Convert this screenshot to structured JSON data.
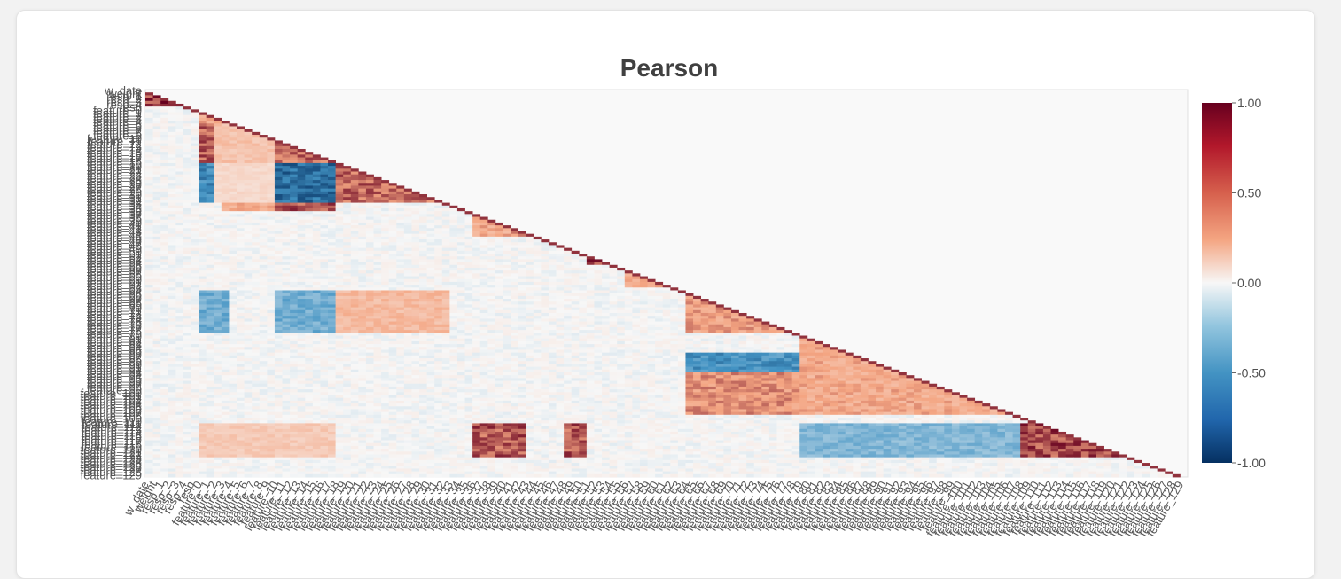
{
  "chart_data": {
    "type": "heatmap",
    "title": "Pearson",
    "xlabel": "",
    "ylabel": "",
    "triangle": "lower",
    "colorscale": "RdBu (diverging, blue = negative, red = positive)",
    "colors": {
      "neg_max": "#053061",
      "neg_mid": "#4393c3",
      "zero": "#f7f7f7",
      "pos_mid": "#f4a582",
      "pos_max": "#67001f",
      "masked": "#f9f9f9"
    },
    "zrange": [
      -1.0,
      1.0
    ],
    "colorbar_ticks": [
      "1.00",
      "0.50",
      "0.00",
      "-0.50",
      "-1.00"
    ],
    "variables": [
      "w_date",
      "weight",
      "resp_1",
      "resp_2",
      "resp_3",
      "resp_4",
      "resp",
      "feature_0",
      "feature_1",
      "feature_2",
      "feature_3",
      "feature_4",
      "feature_5",
      "feature_6",
      "feature_7",
      "feature_8",
      "feature_9",
      "feature_10",
      "feature_11",
      "feature_12",
      "feature_13",
      "feature_14",
      "feature_15",
      "feature_16",
      "feature_17",
      "feature_18",
      "feature_19",
      "feature_20",
      "feature_21",
      "feature_22",
      "feature_23",
      "feature_24",
      "feature_25",
      "feature_26",
      "feature_27",
      "feature_28",
      "feature_29",
      "feature_30",
      "feature_31",
      "feature_32",
      "feature_33",
      "feature_34",
      "feature_35",
      "feature_36",
      "feature_37",
      "feature_38",
      "feature_39",
      "feature_40",
      "feature_41",
      "feature_42",
      "feature_43",
      "feature_44",
      "feature_45",
      "feature_46",
      "feature_47",
      "feature_48",
      "feature_49",
      "feature_50",
      "feature_51",
      "feature_52",
      "feature_53",
      "feature_54",
      "feature_55",
      "feature_56",
      "feature_57",
      "feature_58",
      "feature_59",
      "feature_60",
      "feature_61",
      "feature_62",
      "feature_63",
      "feature_64",
      "feature_65",
      "feature_66",
      "feature_67",
      "feature_68",
      "feature_69",
      "feature_70",
      "feature_71",
      "feature_72",
      "feature_73",
      "feature_74",
      "feature_75",
      "feature_76",
      "feature_77",
      "feature_78",
      "feature_79",
      "feature_80",
      "feature_81",
      "feature_82",
      "feature_83",
      "feature_84",
      "feature_85",
      "feature_86",
      "feature_87",
      "feature_88",
      "feature_89",
      "feature_90",
      "feature_91",
      "feature_92",
      "feature_93",
      "feature_94",
      "feature_95",
      "feature_96",
      "feature_97",
      "feature_98",
      "feature_99",
      "feature_100",
      "feature_101",
      "feature_102",
      "feature_103",
      "feature_104",
      "feature_105",
      "feature_106",
      "feature_107",
      "feature_108",
      "feature_109",
      "feature_110",
      "feature_111",
      "feature_112",
      "feature_113",
      "feature_114",
      "feature_115",
      "feature_116",
      "feature_117",
      "feature_118",
      "feature_119",
      "feature_120",
      "feature_121",
      "feature_122",
      "feature_123",
      "feature_124",
      "feature_125",
      "feature_126",
      "feature_127",
      "feature_128",
      "feature_129"
    ],
    "blocks": [
      {
        "rows": [
          1,
          6
        ],
        "cols": [
          0,
          6
        ],
        "r": 0.9
      },
      {
        "rows": [
          8,
          12
        ],
        "cols": [
          7,
          11
        ],
        "r": 0.55
      },
      {
        "rows": [
          12,
          26
        ],
        "cols": [
          7,
          25
        ],
        "r": 0.35
      },
      {
        "rows": [
          12,
          26
        ],
        "cols": [
          7,
          9
        ],
        "r": 0.8
      },
      {
        "rows": [
          17,
          26
        ],
        "cols": [
          17,
          25
        ],
        "r": 0.75
      },
      {
        "rows": [
          26,
          40
        ],
        "cols": [
          17,
          25
        ],
        "r": -0.75
      },
      {
        "rows": [
          26,
          40
        ],
        "cols": [
          7,
          9
        ],
        "r": -0.6
      },
      {
        "rows": [
          26,
          40
        ],
        "cols": [
          9,
          17
        ],
        "r": 0.2
      },
      {
        "rows": [
          40,
          43
        ],
        "cols": [
          17,
          25
        ],
        "r": 0.8
      },
      {
        "rows": [
          40,
          43
        ],
        "cols": [
          10,
          17
        ],
        "r": 0.5
      },
      {
        "rows": [
          26,
          40
        ],
        "cols": [
          25,
          40
        ],
        "r": 0.75
      },
      {
        "rows": [
          43,
          52
        ],
        "cols": [
          43,
          50
        ],
        "r": 0.5
      },
      {
        "rows": [
          45,
          52
        ],
        "cols": [
          48,
          58
        ],
        "r": 0.6
      },
      {
        "rows": [
          57,
          62
        ],
        "cols": [
          58,
          63
        ],
        "r": 0.85
      },
      {
        "rows": [
          63,
          70
        ],
        "cols": [
          63,
          72
        ],
        "r": 0.5
      },
      {
        "rows": [
          71,
          86
        ],
        "cols": [
          7,
          11
        ],
        "r": -0.4
      },
      {
        "rows": [
          71,
          86
        ],
        "cols": [
          17,
          25
        ],
        "r": -0.4
      },
      {
        "rows": [
          71,
          86
        ],
        "cols": [
          25,
          40
        ],
        "r": 0.4
      },
      {
        "rows": [
          71,
          86
        ],
        "cols": [
          71,
          86
        ],
        "r": 0.55
      },
      {
        "rows": [
          86,
          115
        ],
        "cols": [
          86,
          115
        ],
        "r": 0.5
      },
      {
        "rows": [
          93,
          100
        ],
        "cols": [
          71,
          86
        ],
        "r": -0.55
      },
      {
        "rows": [
          100,
          115
        ],
        "cols": [
          71,
          86
        ],
        "r": 0.6
      },
      {
        "rows": [
          118,
          130
        ],
        "cols": [
          115,
          130
        ],
        "r": 0.85
      },
      {
        "rows": [
          118,
          130
        ],
        "cols": [
          43,
          50
        ],
        "r": 0.8
      },
      {
        "rows": [
          118,
          130
        ],
        "cols": [
          55,
          58
        ],
        "r": 0.8
      },
      {
        "rows": [
          118,
          130
        ],
        "cols": [
          86,
          115
        ],
        "r": -0.35
      },
      {
        "rows": [
          118,
          130
        ],
        "cols": [
          7,
          25
        ],
        "r": 0.3
      }
    ]
  }
}
